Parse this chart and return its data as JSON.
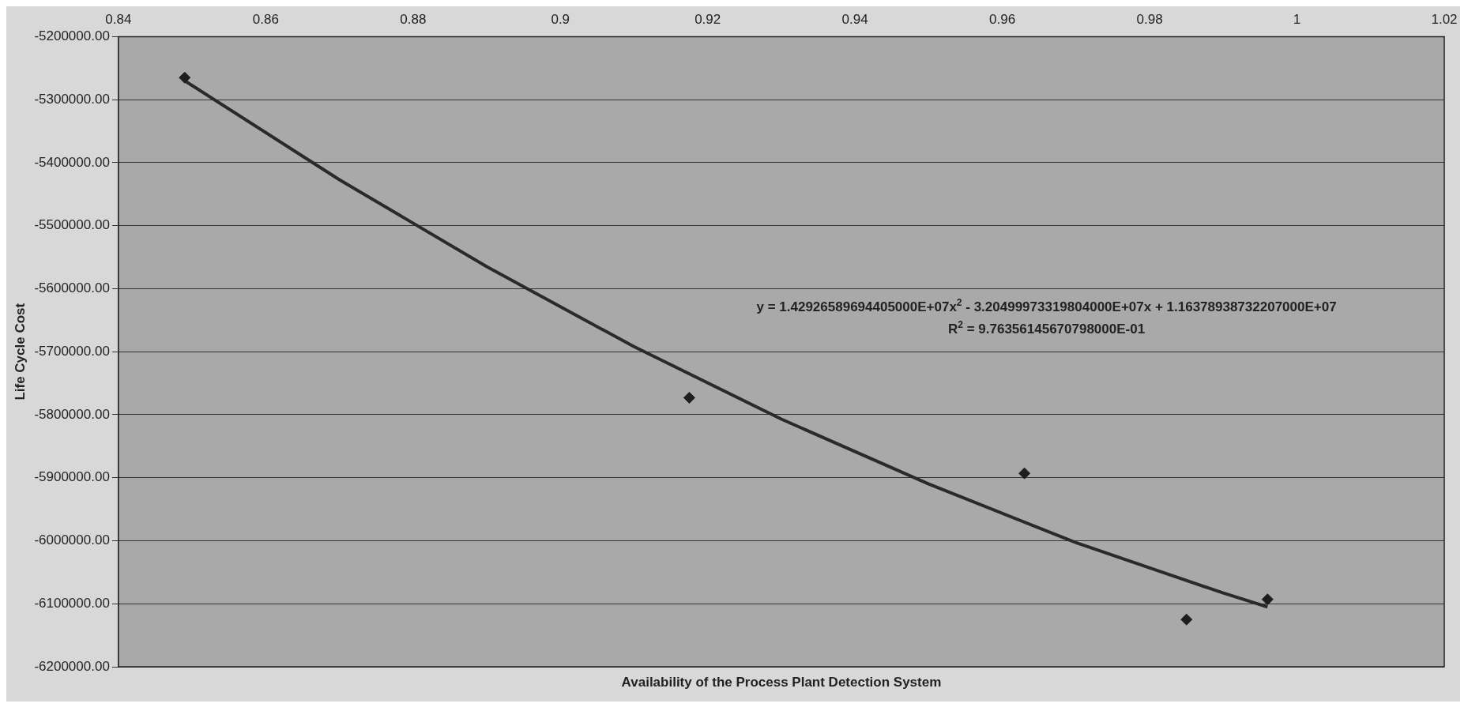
{
  "chart_data": {
    "type": "scatter",
    "xlabel": "Availability of the Process Plant Detection System",
    "ylabel": "Life Cycle Cost",
    "xlim": [
      0.84,
      1.02
    ],
    "xticks": [
      0.84,
      0.86,
      0.88,
      0.9,
      0.92,
      0.94,
      0.96,
      0.98,
      1,
      1.02
    ],
    "ylim": [
      -6200000,
      -5200000
    ],
    "yticks": [
      {
        "value": -6200000,
        "label": "-6200000.00"
      },
      {
        "value": -6100000,
        "label": "-6100000.00"
      },
      {
        "value": -6000000,
        "label": "-6000000.00"
      },
      {
        "value": -5900000,
        "label": "-5900000.00"
      },
      {
        "value": -5800000,
        "label": "-5800000.00"
      },
      {
        "value": -5700000,
        "label": "-5700000.00"
      },
      {
        "value": -5600000,
        "label": "-5600000.00"
      },
      {
        "value": -5500000,
        "label": "-5500000.00"
      },
      {
        "value": -5400000,
        "label": "-5400000.00"
      },
      {
        "value": -5300000,
        "label": "-5300000.00"
      },
      {
        "value": -5200000,
        "label": "-5200000.00"
      }
    ],
    "grid": "y",
    "legend": false,
    "series": [
      {
        "type": "scatter",
        "marker": "diamond",
        "color": "#1e1e1e",
        "x": [
          0.849,
          0.9175,
          0.963,
          0.985,
          0.996
        ],
        "values": [
          -5265000,
          -5773000,
          -5893000,
          -6125000,
          -6093000
        ]
      },
      {
        "type": "line",
        "marker": "none",
        "color": "#2a2a2a",
        "x": [
          0.849,
          0.87,
          0.89,
          0.91,
          0.93,
          0.95,
          0.97,
          0.99,
          0.996
        ],
        "values": [
          -5270000,
          -5427000,
          -5565000,
          -5692000,
          -5807000,
          -5910000,
          -6003000,
          -6083000,
          -6105000
        ]
      }
    ],
    "annotations": [
      "y = 1.42926589694405000E+07x$^{2}$ - 3.20499973319804000E+07x + 1.16378938732207000E+07",
      "R$^{2}$ = 9.76356145670798000E-01"
    ]
  }
}
